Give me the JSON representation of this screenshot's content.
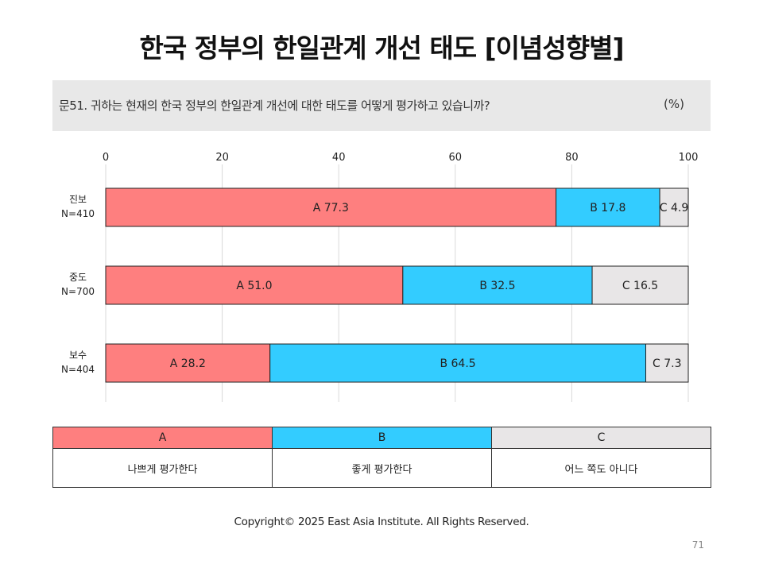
{
  "title": "한국 정부의 한일관계 개선 태도 [이념성향별]",
  "question": "문51. 귀하는 현재의 한국 정부의 한일관계 개선에 대한 태도를 어떻게 평가하고 있습니까?",
  "unit": "(%)",
  "chart_data": {
    "type": "bar",
    "orientation": "horizontal",
    "stacked": true,
    "xlim": [
      0,
      100
    ],
    "ticks": [
      "0",
      "20",
      "40",
      "60",
      "80",
      "100"
    ],
    "categories": [
      {
        "name": "진보",
        "n": "N=410"
      },
      {
        "name": "중도",
        "n": "N=700"
      },
      {
        "name": "보수",
        "n": "N=404"
      }
    ],
    "series": [
      {
        "key": "A",
        "color": "#fe7f7f",
        "values": [
          77.3,
          51.0,
          28.2
        ],
        "labels": [
          "A 77.3",
          "A 51.0",
          "A 28.2"
        ]
      },
      {
        "key": "B",
        "color": "#33ccff",
        "values": [
          17.8,
          32.5,
          64.5
        ],
        "labels": [
          "B 17.8",
          "B 32.5",
          "B 64.5"
        ]
      },
      {
        "key": "C",
        "color": "#e8e6e7",
        "values": [
          4.9,
          16.5,
          7.3
        ],
        "labels": [
          "C 4.9",
          "C 16.5",
          "C 7.3"
        ]
      }
    ],
    "grid": true
  },
  "legend": {
    "headers": [
      "A",
      "B",
      "C"
    ],
    "descriptions": [
      "나쁘게 평가한다",
      "좋게 평가한다",
      "어느 쪽도 아니다"
    ]
  },
  "copyright": "Copyright© 2025 East Asia Institute. All Rights Reserved.",
  "page_number": "71"
}
